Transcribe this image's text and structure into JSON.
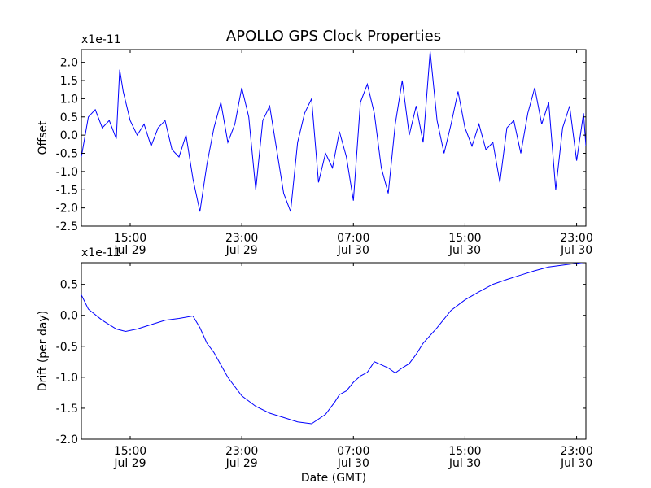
{
  "chart_data": [
    {
      "type": "line",
      "title": "APOLLO GPS Clock Properties",
      "ylabel": "Offset",
      "y_multiplier_label": "x1e-11",
      "xlabel": "",
      "ylim": [
        -2.5,
        2.35
      ],
      "yticks": [
        -2.5,
        -2.0,
        -1.5,
        -1.0,
        -0.5,
        0.0,
        0.5,
        1.0,
        1.5,
        2.0
      ],
      "ytick_labels": [
        "-2.5",
        "-2.0",
        "-1.5",
        "-1.0",
        "-0.5",
        "0.0",
        "0.5",
        "1.0",
        "1.5",
        "2.0"
      ],
      "xlim": [
        "Jul 29 11:30",
        "Jul 30 23:40"
      ],
      "xtick_labels": [
        {
          "t": "Jul 29 15:00",
          "time": "15:00",
          "day": "Jul 29"
        },
        {
          "t": "Jul 29 23:00",
          "time": "23:00",
          "day": "Jul 29"
        },
        {
          "t": "Jul 30 07:00",
          "time": "07:00",
          "day": "Jul 30"
        },
        {
          "t": "Jul 30 15:00",
          "time": "15:00",
          "day": "Jul 30"
        },
        {
          "t": "Jul 30 23:00",
          "time": "23:00",
          "day": "Jul 30"
        }
      ],
      "series_color": "#0000ff",
      "grid": false,
      "series": [
        {
          "x": [
            "Jul 29 11:30",
            "Jul 29 12:00",
            "Jul 29 12:30",
            "Jul 29 13:00",
            "Jul 29 13:30",
            "Jul 29 14:00",
            "Jul 29 14:15",
            "Jul 29 14:30",
            "Jul 29 15:00",
            "Jul 29 15:30",
            "Jul 29 16:00",
            "Jul 29 16:30",
            "Jul 29 17:00",
            "Jul 29 17:30",
            "Jul 29 18:00",
            "Jul 29 18:30",
            "Jul 29 19:00",
            "Jul 29 19:30",
            "Jul 29 20:00",
            "Jul 29 20:30",
            "Jul 29 21:00",
            "Jul 29 21:30",
            "Jul 29 22:00",
            "Jul 29 22:30",
            "Jul 29 23:00",
            "Jul 29 23:30",
            "Jul 30 00:00",
            "Jul 30 00:30",
            "Jul 30 01:00",
            "Jul 30 01:30",
            "Jul 30 02:00",
            "Jul 30 02:30",
            "Jul 30 03:00",
            "Jul 30 03:30",
            "Jul 30 04:00",
            "Jul 30 04:30",
            "Jul 30 05:00",
            "Jul 30 05:30",
            "Jul 30 06:00",
            "Jul 30 06:30",
            "Jul 30 07:00",
            "Jul 30 07:30",
            "Jul 30 08:00",
            "Jul 30 08:30",
            "Jul 30 09:00",
            "Jul 30 09:30",
            "Jul 30 10:00",
            "Jul 30 10:30",
            "Jul 30 11:00",
            "Jul 30 11:30",
            "Jul 30 12:00",
            "Jul 30 12:30",
            "Jul 30 13:00",
            "Jul 30 13:30",
            "Jul 30 14:00",
            "Jul 30 14:30",
            "Jul 30 15:00",
            "Jul 30 15:30",
            "Jul 30 16:00",
            "Jul 30 16:30",
            "Jul 30 17:00",
            "Jul 30 17:30",
            "Jul 30 18:00",
            "Jul 30 18:30",
            "Jul 30 19:00",
            "Jul 30 19:30",
            "Jul 30 20:00",
            "Jul 30 20:30",
            "Jul 30 21:00",
            "Jul 30 21:30",
            "Jul 30 22:00",
            "Jul 30 22:30",
            "Jul 30 23:00",
            "Jul 30 23:30",
            "Jul 30 23:40"
          ],
          "y": [
            -0.6,
            0.5,
            0.7,
            0.2,
            0.4,
            -0.1,
            1.8,
            1.2,
            0.4,
            0.0,
            0.3,
            -0.3,
            0.2,
            0.4,
            -0.4,
            -0.6,
            0.0,
            -1.2,
            -2.1,
            -0.8,
            0.2,
            0.9,
            -0.2,
            0.3,
            1.3,
            0.5,
            -1.5,
            0.4,
            0.8,
            -0.4,
            -1.6,
            -2.1,
            -0.2,
            0.6,
            1.0,
            -1.3,
            -0.5,
            -0.9,
            0.1,
            -0.6,
            -1.8,
            0.9,
            1.4,
            0.6,
            -0.9,
            -1.6,
            0.3,
            1.5,
            0.0,
            0.8,
            -0.2,
            2.3,
            0.4,
            -0.5,
            0.3,
            1.2,
            0.2,
            -0.3,
            0.3,
            -0.4,
            -0.2,
            -1.3,
            0.2,
            0.4,
            -0.5,
            0.6,
            1.3,
            0.3,
            0.9,
            -1.5,
            0.2,
            0.8,
            -0.7,
            0.6,
            -0.3
          ]
        }
      ]
    },
    {
      "type": "line",
      "title": "",
      "ylabel": "Drift (per day)",
      "y_multiplier_label": "x1e-11",
      "xlabel": "Date (GMT)",
      "ylim": [
        -2.0,
        0.85
      ],
      "yticks": [
        -2.0,
        -1.5,
        -1.0,
        -0.5,
        0.0,
        0.5
      ],
      "ytick_labels": [
        "-2.0",
        "-1.5",
        "-1.0",
        "-0.5",
        "0.0",
        "0.5"
      ],
      "xlim": [
        "Jul 29 11:30",
        "Jul 30 23:40"
      ],
      "xtick_labels": [
        {
          "t": "Jul 29 15:00",
          "time": "15:00",
          "day": "Jul 29"
        },
        {
          "t": "Jul 29 23:00",
          "time": "23:00",
          "day": "Jul 29"
        },
        {
          "t": "Jul 30 07:00",
          "time": "07:00",
          "day": "Jul 30"
        },
        {
          "t": "Jul 30 15:00",
          "time": "15:00",
          "day": "Jul 30"
        },
        {
          "t": "Jul 30 23:00",
          "time": "23:00",
          "day": "Jul 30"
        }
      ],
      "series_color": "#0000ff",
      "grid": false,
      "series": [
        {
          "x": [
            "Jul 29 11:30",
            "Jul 29 12:00",
            "Jul 29 13:00",
            "Jul 29 14:00",
            "Jul 29 14:40",
            "Jul 29 15:30",
            "Jul 29 16:30",
            "Jul 29 17:30",
            "Jul 29 18:30",
            "Jul 29 19:30",
            "Jul 29 20:00",
            "Jul 29 20:30",
            "Jul 29 21:00",
            "Jul 29 21:30",
            "Jul 29 22:00",
            "Jul 29 23:00",
            "Jul 30 00:00",
            "Jul 30 01:00",
            "Jul 30 02:00",
            "Jul 30 03:00",
            "Jul 30 04:00",
            "Jul 30 05:00",
            "Jul 30 05:40",
            "Jul 30 06:00",
            "Jul 30 06:30",
            "Jul 30 07:00",
            "Jul 30 07:30",
            "Jul 30 08:00",
            "Jul 30 08:30",
            "Jul 30 09:00",
            "Jul 30 09:30",
            "Jul 30 10:00",
            "Jul 30 10:30",
            "Jul 30 11:00",
            "Jul 30 11:30",
            "Jul 30 12:00",
            "Jul 30 13:00",
            "Jul 30 14:00",
            "Jul 30 15:00",
            "Jul 30 16:00",
            "Jul 30 17:00",
            "Jul 30 18:00",
            "Jul 30 19:00",
            "Jul 30 20:00",
            "Jul 30 21:00",
            "Jul 30 22:00",
            "Jul 30 23:00",
            "Jul 30 23:40"
          ],
          "y": [
            0.33,
            0.1,
            -0.08,
            -0.22,
            -0.26,
            -0.22,
            -0.15,
            -0.08,
            -0.05,
            -0.01,
            -0.2,
            -0.45,
            -0.6,
            -0.8,
            -1.0,
            -1.3,
            -1.47,
            -1.58,
            -1.65,
            -1.72,
            -1.75,
            -1.6,
            -1.4,
            -1.28,
            -1.22,
            -1.08,
            -0.98,
            -0.92,
            -0.75,
            -0.8,
            -0.85,
            -0.93,
            -0.85,
            -0.78,
            -0.63,
            -0.45,
            -0.2,
            0.08,
            0.25,
            0.38,
            0.5,
            0.58,
            0.65,
            0.72,
            0.78,
            0.81,
            0.84,
            0.86
          ]
        }
      ]
    }
  ]
}
